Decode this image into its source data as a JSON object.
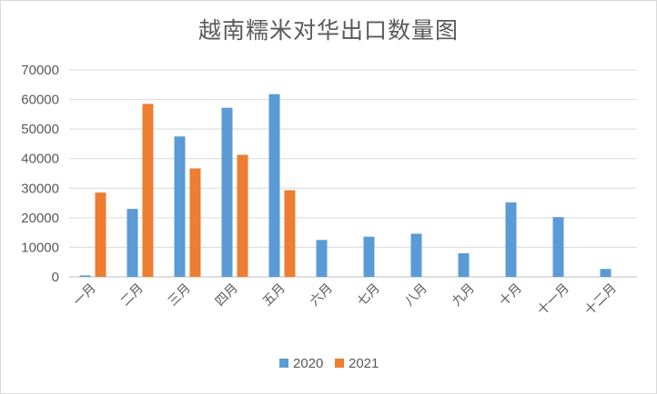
{
  "chart_data": {
    "type": "bar",
    "title": "越南糯米对华出口数量图",
    "xlabel": "",
    "ylabel": "",
    "categories": [
      "一月",
      "二月",
      "三月",
      "四月",
      "五月",
      "六月",
      "七月",
      "八月",
      "九月",
      "十月",
      "十一月",
      "十二月"
    ],
    "series": [
      {
        "name": "2020",
        "color": "#5b9bd5",
        "values": [
          500,
          23000,
          47500,
          57200,
          61800,
          12500,
          13600,
          14600,
          8000,
          25200,
          20200,
          2700
        ]
      },
      {
        "name": "2021",
        "color": "#ed7d31",
        "values": [
          28500,
          58500,
          36700,
          41300,
          29300,
          null,
          null,
          null,
          null,
          null,
          null,
          null
        ]
      }
    ],
    "ylim": [
      0,
      70000
    ],
    "yticks": [
      0,
      10000,
      20000,
      30000,
      40000,
      50000,
      60000,
      70000
    ],
    "grid": true,
    "legend_position": "bottom"
  }
}
